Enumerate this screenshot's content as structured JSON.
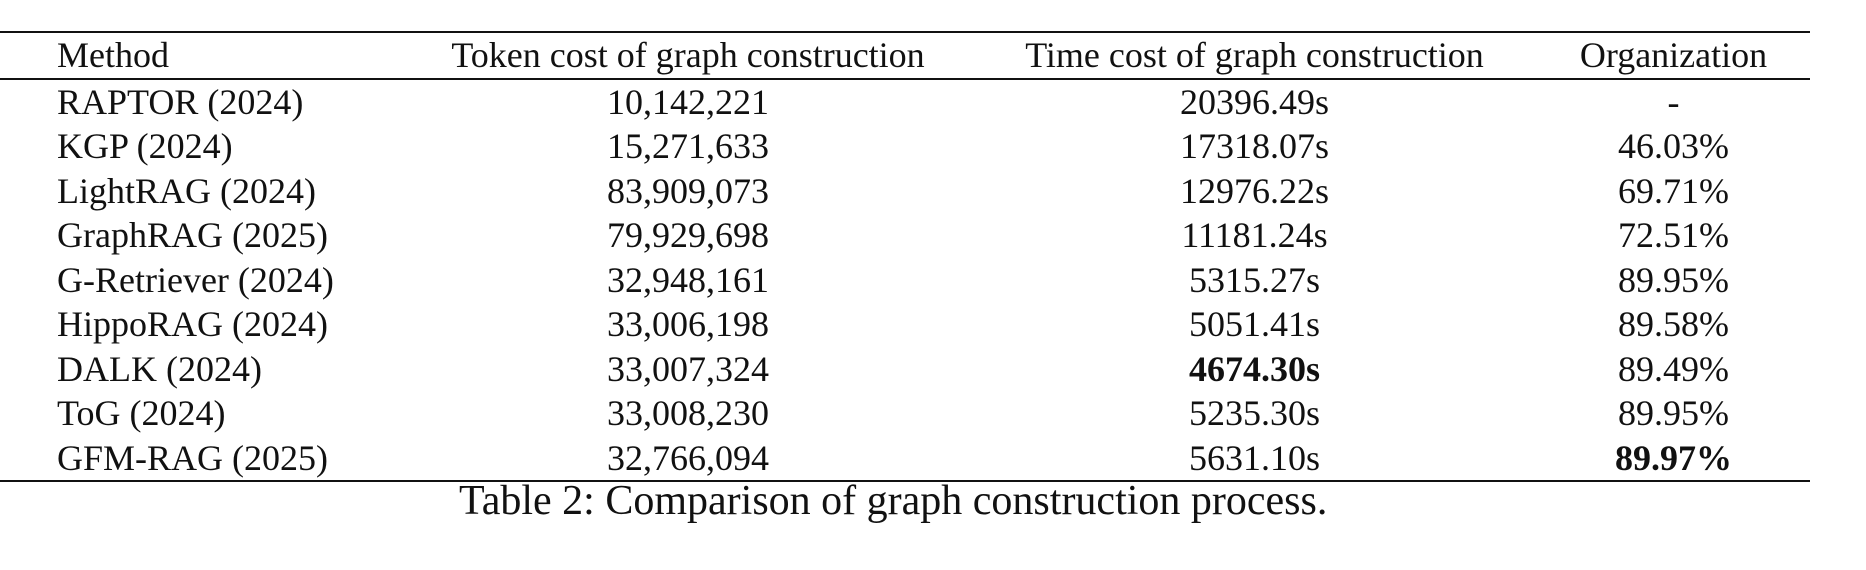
{
  "table": {
    "headers": [
      "Method",
      "Token cost of graph construction",
      "Time cost of graph construction",
      "Organization"
    ],
    "rows": [
      {
        "method": "RAPTOR (2024)",
        "token": "10,142,221",
        "time": "20396.49s",
        "org": "-"
      },
      {
        "method": "KGP (2024)",
        "token": "15,271,633",
        "time": "17318.07s",
        "org": "46.03%"
      },
      {
        "method": "LightRAG (2024)",
        "token": "83,909,073",
        "time": "12976.22s",
        "org": "69.71%"
      },
      {
        "method": "GraphRAG (2025)",
        "token": "79,929,698",
        "time": "11181.24s",
        "org": "72.51%"
      },
      {
        "method": "G-Retriever (2024)",
        "token": "32,948,161",
        "time": "5315.27s",
        "org": "89.95%"
      },
      {
        "method": "HippoRAG (2024)",
        "token": "33,006,198",
        "time": "5051.41s",
        "org": "89.58%"
      },
      {
        "method": "DALK (2024)",
        "token": "33,007,324",
        "time": "4674.30s",
        "org": "89.49%"
      },
      {
        "method": "ToG (2024)",
        "token": "33,008,230",
        "time": "5235.30s",
        "org": "89.95%"
      },
      {
        "method": "GFM-RAG (2025)",
        "token": "32,766,094",
        "time": "5631.10s",
        "org": "89.97%"
      }
    ]
  },
  "caption": "Table 2: Comparison of graph construction process."
}
